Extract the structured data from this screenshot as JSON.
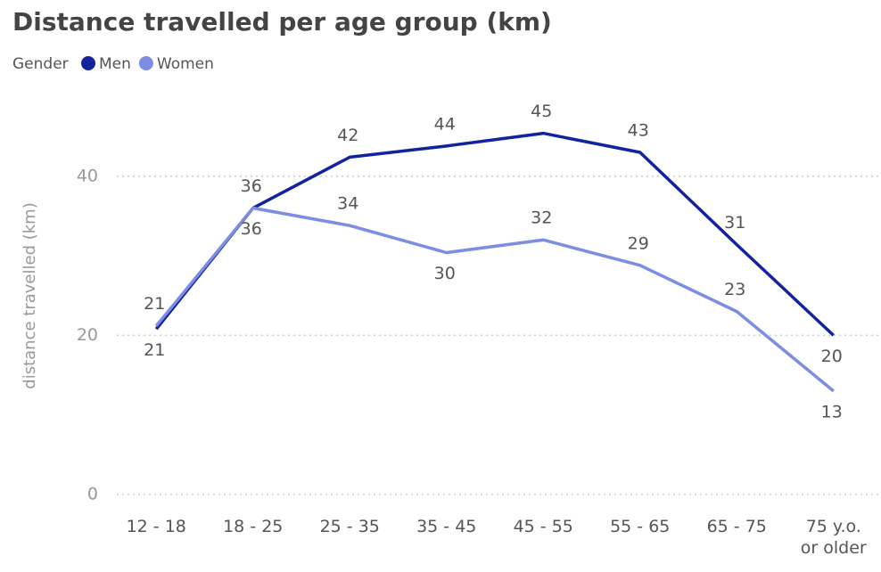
{
  "chart_data": {
    "type": "line",
    "title": "Distance travelled per age group (km)",
    "legend_title": "Gender",
    "y_label": "distance travelled (km)",
    "categories": [
      "12 - 18",
      "18 - 25",
      "25 - 35",
      "35 - 45",
      "45 - 55",
      "55 - 65",
      "65 - 75",
      "75 y.o. or older"
    ],
    "series": [
      {
        "name": "Men",
        "color": "#12239e",
        "values": [
          20.8,
          36,
          42.4,
          43.8,
          45.4,
          43,
          31.4,
          20
        ],
        "value_labels": [
          "21",
          "36",
          "42",
          "44",
          "45",
          "43",
          "31",
          "20"
        ]
      },
      {
        "name": "Women",
        "color": "#7b8ee3",
        "values": [
          21.2,
          36,
          33.8,
          30.4,
          32,
          28.8,
          23,
          13
        ],
        "value_labels": [
          "21",
          "36",
          "34",
          "30",
          "32",
          "29",
          "23",
          "13"
        ]
      }
    ],
    "ylim": [
      0,
      50
    ],
    "yticks": [
      0,
      20,
      40
    ],
    "grid": true,
    "legend": "top-left"
  }
}
